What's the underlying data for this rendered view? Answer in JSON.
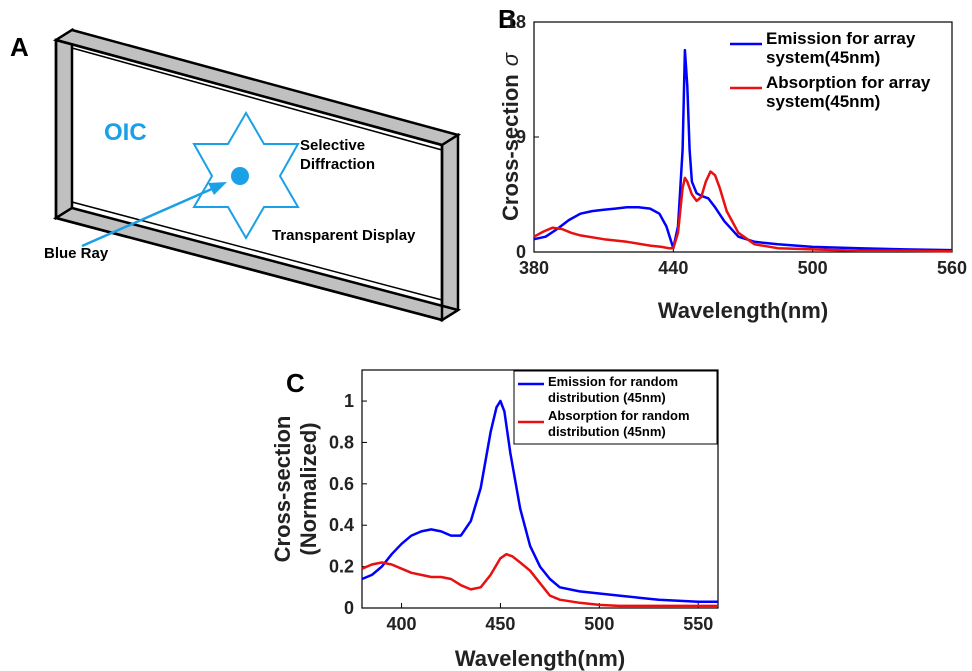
{
  "diagram": {
    "panel_label": "A",
    "oic_label": "OIC",
    "selective_label_line1": "Selective",
    "selective_label_line2": "Diffraction",
    "transparent_label": "Transparent Display",
    "blue_ray_label": "Blue Ray",
    "colors": {
      "star": "#1aa0e6",
      "frame_fill": "#c0c0c0",
      "frame_stroke": "#000000"
    },
    "icons": [
      "star-of-david-icon",
      "blue-dot-icon",
      "arrow-icon"
    ]
  },
  "chart_data": [
    {
      "panel_label": "B",
      "type": "line",
      "title": "",
      "xlabel": "Wavelength(nm)",
      "ylabel": "Cross-section",
      "ylabel_symbol": "σ",
      "xlim": [
        380,
        560
      ],
      "ylim": [
        0,
        18
      ],
      "xticks": [
        380,
        440,
        500,
        560
      ],
      "yticks": [
        0,
        9,
        18
      ],
      "legend_position": "top-right",
      "series": [
        {
          "name": "Emission for array system(45nm)",
          "color": "#0000ff",
          "x": [
            380,
            385,
            390,
            395,
            400,
            405,
            410,
            415,
            420,
            425,
            430,
            434,
            437,
            440,
            442,
            444,
            445,
            446,
            447,
            448,
            450,
            452,
            455,
            458,
            462,
            468,
            475,
            485,
            500,
            520,
            540,
            560
          ],
          "y": [
            1.0,
            1.2,
            1.8,
            2.5,
            3.0,
            3.2,
            3.3,
            3.4,
            3.5,
            3.5,
            3.4,
            3.0,
            2.0,
            0.3,
            2.0,
            8.0,
            15.8,
            13.0,
            8.0,
            5.5,
            4.6,
            4.4,
            4.2,
            3.5,
            2.4,
            1.2,
            0.8,
            0.6,
            0.4,
            0.3,
            0.2,
            0.15
          ]
        },
        {
          "name": "Absorption for array system(45nm)",
          "color": "#e81010",
          "x": [
            380,
            384,
            388,
            392,
            396,
            400,
            410,
            420,
            430,
            435,
            438,
            440,
            442,
            444,
            445,
            446,
            448,
            450,
            452,
            454,
            456,
            458,
            460,
            463,
            468,
            475,
            485,
            500,
            520,
            540,
            560
          ],
          "y": [
            1.2,
            1.6,
            1.9,
            1.8,
            1.5,
            1.3,
            1.0,
            0.8,
            0.5,
            0.4,
            0.3,
            0.3,
            1.5,
            5.0,
            5.8,
            5.5,
            4.5,
            4.0,
            4.3,
            5.5,
            6.3,
            6.0,
            5.0,
            3.2,
            1.5,
            0.6,
            0.3,
            0.2,
            0.1,
            0.1,
            0.05
          ]
        }
      ]
    },
    {
      "panel_label": "C",
      "type": "line",
      "title": "",
      "xlabel": "Wavelength(nm)",
      "ylabel": "Cross-section (Normalized)",
      "ylabel_lines": [
        "Cross-section",
        "(Normalized)"
      ],
      "xlim": [
        380,
        560
      ],
      "ylim": [
        0,
        1.15
      ],
      "xticks": [
        400,
        450,
        500,
        550
      ],
      "yticks": [
        0,
        0.2,
        0.4,
        0.6,
        0.8,
        1
      ],
      "ytick_labels": [
        "0",
        "0.2",
        "0.4",
        "0.6",
        "0.8",
        "1"
      ],
      "legend_position": "top-right",
      "series": [
        {
          "name": "Emission for random distribution (45nm)",
          "color": "#0000ff",
          "x": [
            380,
            385,
            390,
            395,
            400,
            405,
            410,
            415,
            420,
            425,
            430,
            435,
            440,
            445,
            448,
            450,
            452,
            455,
            460,
            465,
            470,
            475,
            480,
            490,
            500,
            510,
            520,
            530,
            540,
            550,
            560
          ],
          "y": [
            0.14,
            0.16,
            0.2,
            0.26,
            0.31,
            0.35,
            0.37,
            0.38,
            0.37,
            0.35,
            0.35,
            0.42,
            0.58,
            0.85,
            0.97,
            1.0,
            0.95,
            0.75,
            0.48,
            0.3,
            0.2,
            0.14,
            0.1,
            0.08,
            0.07,
            0.06,
            0.05,
            0.04,
            0.035,
            0.03,
            0.03
          ]
        },
        {
          "name": "Absorption for random distribution (45nm)",
          "color": "#e81010",
          "x": [
            380,
            385,
            390,
            395,
            400,
            405,
            410,
            415,
            420,
            425,
            430,
            435,
            440,
            445,
            450,
            453,
            456,
            460,
            465,
            470,
            475,
            480,
            490,
            500,
            510,
            520,
            530,
            540,
            550,
            560
          ],
          "y": [
            0.19,
            0.21,
            0.22,
            0.21,
            0.19,
            0.17,
            0.16,
            0.15,
            0.15,
            0.14,
            0.11,
            0.09,
            0.1,
            0.16,
            0.24,
            0.26,
            0.25,
            0.22,
            0.18,
            0.12,
            0.06,
            0.04,
            0.025,
            0.015,
            0.01,
            0.01,
            0.01,
            0.01,
            0.01,
            0.01
          ]
        }
      ]
    }
  ]
}
